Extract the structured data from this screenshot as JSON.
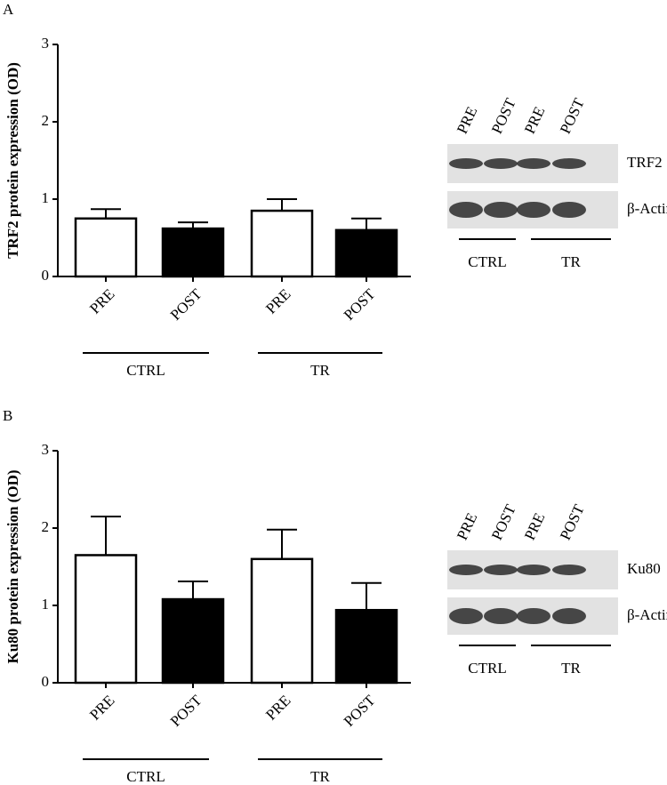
{
  "chart_data": [
    {
      "type": "bar",
      "panel": "A",
      "y_label": "TRF2 protein expression (OD)",
      "categories": [
        "PRE",
        "POST",
        "PRE",
        "POST"
      ],
      "groups": [
        "CTRL",
        "TR"
      ],
      "values": [
        0.75,
        0.62,
        0.85,
        0.6
      ],
      "errors": [
        0.12,
        0.08,
        0.15,
        0.15
      ],
      "colors": [
        "#ffffff",
        "#000000",
        "#ffffff",
        "#000000"
      ],
      "ylim": [
        0,
        3
      ],
      "yticks": [
        0,
        1,
        2,
        3
      ],
      "blot": {
        "lanes": [
          "PRE",
          "POST",
          "PRE",
          "POST"
        ],
        "rows": [
          "TRF2",
          "β-Actin"
        ],
        "groups": [
          "CTRL",
          "TR"
        ]
      }
    },
    {
      "type": "bar",
      "panel": "B",
      "y_label": "Ku80 protein expression (OD)",
      "categories": [
        "PRE",
        "POST",
        "PRE",
        "POST"
      ],
      "groups": [
        "CTRL",
        "TR"
      ],
      "values": [
        1.65,
        1.08,
        1.6,
        0.94
      ],
      "errors": [
        0.5,
        0.23,
        0.38,
        0.35
      ],
      "colors": [
        "#ffffff",
        "#000000",
        "#ffffff",
        "#000000"
      ],
      "ylim": [
        0,
        3
      ],
      "yticks": [
        0,
        1,
        2,
        3
      ],
      "blot": {
        "lanes": [
          "PRE",
          "POST",
          "PRE",
          "POST"
        ],
        "rows": [
          "Ku80",
          "β-Actin"
        ],
        "groups": [
          "CTRL",
          "TR"
        ]
      }
    }
  ]
}
